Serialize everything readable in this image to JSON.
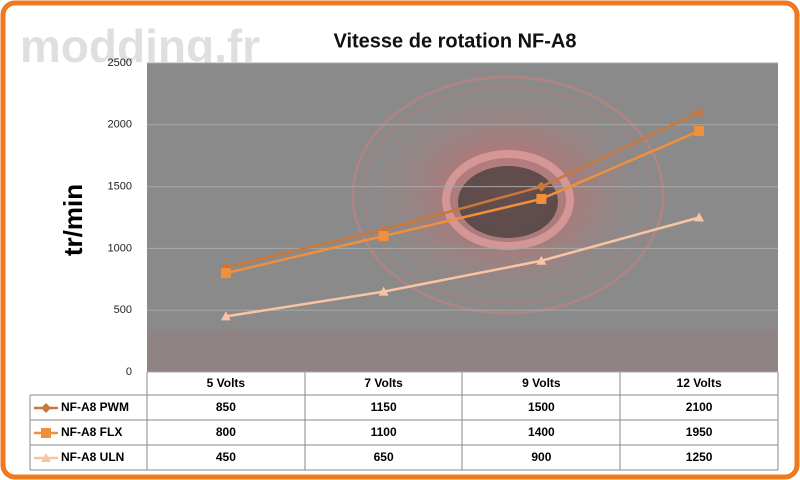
{
  "chart_data": {
    "type": "line",
    "title": "Vitesse de rotation NF-A8",
    "watermark": "modding.fr",
    "y_label": "tr/min",
    "categories": [
      "5 Volts",
      "7 Volts",
      "9 Volts",
      "12 Volts"
    ],
    "series": [
      {
        "name": "NF-A8 PWM",
        "color": "#c8783c",
        "marker": "diamond",
        "values": [
          850,
          1150,
          1500,
          2100
        ]
      },
      {
        "name": "NF-A8 FLX",
        "color": "#f0903c",
        "marker": "square",
        "values": [
          800,
          1100,
          1400,
          1950
        ]
      },
      {
        "name": "NF-A8 ULN",
        "color": "#f8c4a4",
        "marker": "triangle",
        "values": [
          450,
          650,
          900,
          1250
        ]
      }
    ],
    "ylim": [
      0,
      2500
    ],
    "yticks": [
      0,
      500,
      1000,
      1500,
      2000,
      2500
    ],
    "grid": true
  }
}
